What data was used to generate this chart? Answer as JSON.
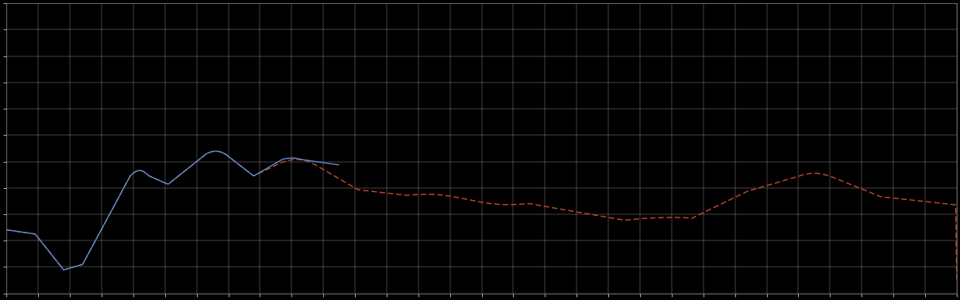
{
  "background_color": "#000000",
  "plot_bg_color": "#000000",
  "grid_color": "#ffffff",
  "line1_color": "#5b8fd4",
  "line2_color": "#c84b32",
  "line1_style": "solid",
  "line2_style": "dashed",
  "line_width": 1.0,
  "figsize": [
    12.09,
    3.78
  ],
  "dpi": 100,
  "xlim": [
    0,
    100
  ],
  "ylim": [
    0,
    100
  ],
  "n_xgrid": 30,
  "n_ygrid": 11
}
